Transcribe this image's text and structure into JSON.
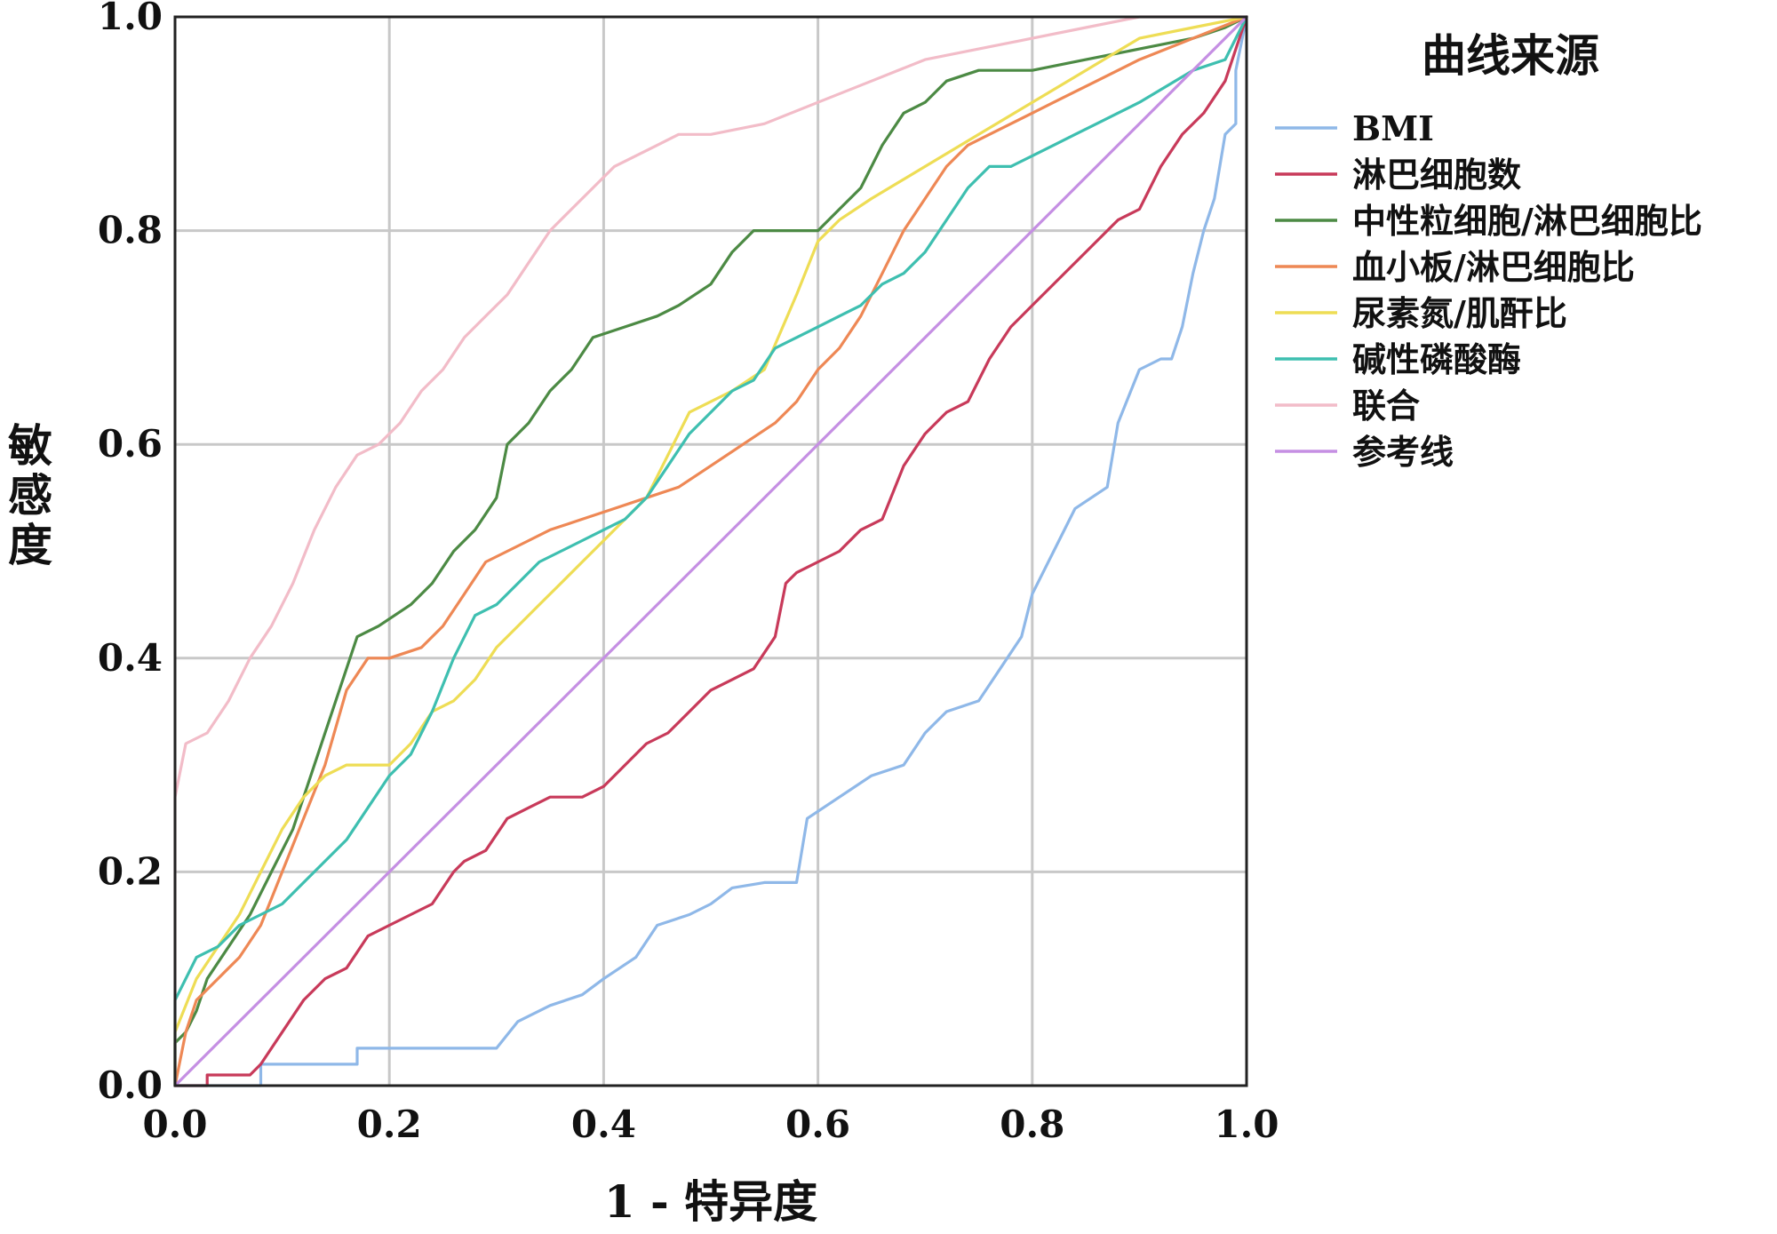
{
  "chart_data": {
    "type": "line",
    "title": "",
    "xlabel": "1 - 特异度",
    "ylabel": "敏感度",
    "xlim": [
      0,
      1
    ],
    "ylim": [
      0,
      1
    ],
    "x_ticks": [
      "0.0",
      "0.2",
      "0.4",
      "0.6",
      "0.8",
      "1.0"
    ],
    "y_ticks": [
      "0.0",
      "0.2",
      "0.4",
      "0.6",
      "0.8",
      "1.0"
    ],
    "grid": true,
    "legend_title": "曲线来源",
    "legend_position": "right",
    "series": [
      {
        "name": "BMI",
        "color": "#8fb8e8",
        "points": [
          [
            0,
            0
          ],
          [
            0.08,
            0
          ],
          [
            0.08,
            0.02
          ],
          [
            0.17,
            0.02
          ],
          [
            0.17,
            0.035
          ],
          [
            0.3,
            0.035
          ],
          [
            0.32,
            0.06
          ],
          [
            0.35,
            0.075
          ],
          [
            0.38,
            0.085
          ],
          [
            0.4,
            0.1
          ],
          [
            0.43,
            0.12
          ],
          [
            0.45,
            0.15
          ],
          [
            0.48,
            0.16
          ],
          [
            0.5,
            0.17
          ],
          [
            0.52,
            0.185
          ],
          [
            0.55,
            0.19
          ],
          [
            0.58,
            0.19
          ],
          [
            0.59,
            0.25
          ],
          [
            0.62,
            0.27
          ],
          [
            0.65,
            0.29
          ],
          [
            0.68,
            0.3
          ],
          [
            0.7,
            0.33
          ],
          [
            0.72,
            0.35
          ],
          [
            0.75,
            0.36
          ],
          [
            0.77,
            0.39
          ],
          [
            0.79,
            0.42
          ],
          [
            0.8,
            0.46
          ],
          [
            0.82,
            0.5
          ],
          [
            0.84,
            0.54
          ],
          [
            0.87,
            0.56
          ],
          [
            0.88,
            0.62
          ],
          [
            0.9,
            0.67
          ],
          [
            0.92,
            0.68
          ],
          [
            0.93,
            0.68
          ],
          [
            0.94,
            0.71
          ],
          [
            0.95,
            0.76
          ],
          [
            0.96,
            0.8
          ],
          [
            0.97,
            0.83
          ],
          [
            0.98,
            0.89
          ],
          [
            0.99,
            0.9
          ],
          [
            0.99,
            0.95
          ],
          [
            1,
            1
          ]
        ]
      },
      {
        "name": "淋巴细胞数",
        "color": "#c83a5a",
        "points": [
          [
            0,
            0
          ],
          [
            0.03,
            0
          ],
          [
            0.03,
            0.01
          ],
          [
            0.07,
            0.01
          ],
          [
            0.08,
            0.02
          ],
          [
            0.1,
            0.05
          ],
          [
            0.12,
            0.08
          ],
          [
            0.14,
            0.1
          ],
          [
            0.16,
            0.11
          ],
          [
            0.18,
            0.14
          ],
          [
            0.2,
            0.15
          ],
          [
            0.22,
            0.16
          ],
          [
            0.24,
            0.17
          ],
          [
            0.26,
            0.2
          ],
          [
            0.27,
            0.21
          ],
          [
            0.29,
            0.22
          ],
          [
            0.31,
            0.25
          ],
          [
            0.33,
            0.26
          ],
          [
            0.35,
            0.27
          ],
          [
            0.38,
            0.27
          ],
          [
            0.4,
            0.28
          ],
          [
            0.42,
            0.3
          ],
          [
            0.44,
            0.32
          ],
          [
            0.46,
            0.33
          ],
          [
            0.48,
            0.35
          ],
          [
            0.5,
            0.37
          ],
          [
            0.52,
            0.38
          ],
          [
            0.54,
            0.39
          ],
          [
            0.56,
            0.42
          ],
          [
            0.57,
            0.47
          ],
          [
            0.58,
            0.48
          ],
          [
            0.6,
            0.49
          ],
          [
            0.62,
            0.5
          ],
          [
            0.64,
            0.52
          ],
          [
            0.66,
            0.53
          ],
          [
            0.68,
            0.58
          ],
          [
            0.7,
            0.61
          ],
          [
            0.72,
            0.63
          ],
          [
            0.74,
            0.64
          ],
          [
            0.76,
            0.68
          ],
          [
            0.78,
            0.71
          ],
          [
            0.8,
            0.73
          ],
          [
            0.82,
            0.75
          ],
          [
            0.84,
            0.77
          ],
          [
            0.86,
            0.79
          ],
          [
            0.88,
            0.81
          ],
          [
            0.9,
            0.82
          ],
          [
            0.92,
            0.86
          ],
          [
            0.94,
            0.89
          ],
          [
            0.96,
            0.91
          ],
          [
            0.98,
            0.94
          ],
          [
            1,
            1
          ]
        ]
      },
      {
        "name": "中性粒细胞/淋巴细胞比",
        "color": "#4c8a44",
        "points": [
          [
            0,
            0
          ],
          [
            0,
            0.04
          ],
          [
            0.01,
            0.05
          ],
          [
            0.02,
            0.07
          ],
          [
            0.03,
            0.1
          ],
          [
            0.05,
            0.13
          ],
          [
            0.07,
            0.16
          ],
          [
            0.09,
            0.2
          ],
          [
            0.11,
            0.24
          ],
          [
            0.13,
            0.3
          ],
          [
            0.15,
            0.36
          ],
          [
            0.17,
            0.42
          ],
          [
            0.19,
            0.43
          ],
          [
            0.22,
            0.45
          ],
          [
            0.24,
            0.47
          ],
          [
            0.26,
            0.5
          ],
          [
            0.28,
            0.52
          ],
          [
            0.3,
            0.55
          ],
          [
            0.31,
            0.6
          ],
          [
            0.33,
            0.62
          ],
          [
            0.35,
            0.65
          ],
          [
            0.37,
            0.67
          ],
          [
            0.39,
            0.7
          ],
          [
            0.42,
            0.71
          ],
          [
            0.45,
            0.72
          ],
          [
            0.47,
            0.73
          ],
          [
            0.5,
            0.75
          ],
          [
            0.52,
            0.78
          ],
          [
            0.54,
            0.8
          ],
          [
            0.56,
            0.8
          ],
          [
            0.58,
            0.8
          ],
          [
            0.6,
            0.8
          ],
          [
            0.62,
            0.82
          ],
          [
            0.64,
            0.84
          ],
          [
            0.66,
            0.88
          ],
          [
            0.68,
            0.91
          ],
          [
            0.7,
            0.92
          ],
          [
            0.72,
            0.94
          ],
          [
            0.75,
            0.95
          ],
          [
            0.8,
            0.95
          ],
          [
            0.85,
            0.96
          ],
          [
            0.9,
            0.97
          ],
          [
            0.95,
            0.98
          ],
          [
            0.98,
            0.99
          ],
          [
            1,
            1
          ]
        ]
      },
      {
        "name": "血小板/淋巴细胞比",
        "color": "#ee8855",
        "points": [
          [
            0,
            0
          ],
          [
            0.01,
            0.05
          ],
          [
            0.02,
            0.08
          ],
          [
            0.04,
            0.1
          ],
          [
            0.06,
            0.12
          ],
          [
            0.08,
            0.15
          ],
          [
            0.1,
            0.2
          ],
          [
            0.12,
            0.25
          ],
          [
            0.14,
            0.3
          ],
          [
            0.16,
            0.37
          ],
          [
            0.18,
            0.4
          ],
          [
            0.2,
            0.4
          ],
          [
            0.23,
            0.41
          ],
          [
            0.25,
            0.43
          ],
          [
            0.27,
            0.46
          ],
          [
            0.29,
            0.49
          ],
          [
            0.31,
            0.5
          ],
          [
            0.33,
            0.51
          ],
          [
            0.35,
            0.52
          ],
          [
            0.38,
            0.53
          ],
          [
            0.41,
            0.54
          ],
          [
            0.44,
            0.55
          ],
          [
            0.47,
            0.56
          ],
          [
            0.5,
            0.58
          ],
          [
            0.53,
            0.6
          ],
          [
            0.56,
            0.62
          ],
          [
            0.58,
            0.64
          ],
          [
            0.6,
            0.67
          ],
          [
            0.62,
            0.69
          ],
          [
            0.64,
            0.72
          ],
          [
            0.66,
            0.76
          ],
          [
            0.68,
            0.8
          ],
          [
            0.7,
            0.83
          ],
          [
            0.72,
            0.86
          ],
          [
            0.74,
            0.88
          ],
          [
            0.76,
            0.89
          ],
          [
            0.78,
            0.9
          ],
          [
            0.8,
            0.91
          ],
          [
            0.82,
            0.92
          ],
          [
            0.84,
            0.93
          ],
          [
            0.86,
            0.94
          ],
          [
            0.9,
            0.96
          ],
          [
            0.95,
            0.98
          ],
          [
            1,
            1
          ]
        ]
      },
      {
        "name": "尿素氮/肌酐比",
        "color": "#eedd55",
        "points": [
          [
            0,
            0
          ],
          [
            0,
            0.05
          ],
          [
            0.02,
            0.1
          ],
          [
            0.04,
            0.13
          ],
          [
            0.06,
            0.16
          ],
          [
            0.08,
            0.2
          ],
          [
            0.1,
            0.24
          ],
          [
            0.12,
            0.27
          ],
          [
            0.14,
            0.29
          ],
          [
            0.16,
            0.3
          ],
          [
            0.18,
            0.3
          ],
          [
            0.2,
            0.3
          ],
          [
            0.22,
            0.32
          ],
          [
            0.24,
            0.35
          ],
          [
            0.26,
            0.36
          ],
          [
            0.28,
            0.38
          ],
          [
            0.3,
            0.41
          ],
          [
            0.32,
            0.43
          ],
          [
            0.34,
            0.45
          ],
          [
            0.36,
            0.47
          ],
          [
            0.38,
            0.49
          ],
          [
            0.4,
            0.51
          ],
          [
            0.42,
            0.53
          ],
          [
            0.44,
            0.55
          ],
          [
            0.46,
            0.59
          ],
          [
            0.48,
            0.63
          ],
          [
            0.5,
            0.64
          ],
          [
            0.52,
            0.65
          ],
          [
            0.55,
            0.67
          ],
          [
            0.58,
            0.74
          ],
          [
            0.6,
            0.79
          ],
          [
            0.62,
            0.81
          ],
          [
            0.65,
            0.83
          ],
          [
            0.7,
            0.86
          ],
          [
            0.75,
            0.89
          ],
          [
            0.8,
            0.92
          ],
          [
            0.85,
            0.95
          ],
          [
            0.9,
            0.98
          ],
          [
            0.95,
            0.99
          ],
          [
            1,
            1
          ]
        ]
      },
      {
        "name": "碱性磷酸酶",
        "color": "#3ebfb0",
        "points": [
          [
            0,
            0
          ],
          [
            0,
            0.08
          ],
          [
            0.02,
            0.12
          ],
          [
            0.04,
            0.13
          ],
          [
            0.06,
            0.15
          ],
          [
            0.08,
            0.16
          ],
          [
            0.1,
            0.17
          ],
          [
            0.12,
            0.19
          ],
          [
            0.14,
            0.21
          ],
          [
            0.16,
            0.23
          ],
          [
            0.18,
            0.26
          ],
          [
            0.2,
            0.29
          ],
          [
            0.22,
            0.31
          ],
          [
            0.24,
            0.35
          ],
          [
            0.26,
            0.4
          ],
          [
            0.28,
            0.44
          ],
          [
            0.3,
            0.45
          ],
          [
            0.32,
            0.47
          ],
          [
            0.34,
            0.49
          ],
          [
            0.36,
            0.5
          ],
          [
            0.38,
            0.51
          ],
          [
            0.4,
            0.52
          ],
          [
            0.42,
            0.53
          ],
          [
            0.44,
            0.55
          ],
          [
            0.46,
            0.58
          ],
          [
            0.48,
            0.61
          ],
          [
            0.5,
            0.63
          ],
          [
            0.52,
            0.65
          ],
          [
            0.54,
            0.66
          ],
          [
            0.56,
            0.69
          ],
          [
            0.58,
            0.7
          ],
          [
            0.6,
            0.71
          ],
          [
            0.62,
            0.72
          ],
          [
            0.64,
            0.73
          ],
          [
            0.66,
            0.75
          ],
          [
            0.68,
            0.76
          ],
          [
            0.7,
            0.78
          ],
          [
            0.72,
            0.81
          ],
          [
            0.74,
            0.84
          ],
          [
            0.76,
            0.86
          ],
          [
            0.78,
            0.86
          ],
          [
            0.8,
            0.87
          ],
          [
            0.82,
            0.88
          ],
          [
            0.84,
            0.89
          ],
          [
            0.86,
            0.9
          ],
          [
            0.9,
            0.92
          ],
          [
            0.95,
            0.95
          ],
          [
            0.98,
            0.96
          ],
          [
            1,
            1
          ]
        ]
      },
      {
        "name": "联合",
        "color": "#f2bcc8",
        "points": [
          [
            0,
            0
          ],
          [
            0,
            0.27
          ],
          [
            0.01,
            0.32
          ],
          [
            0.03,
            0.33
          ],
          [
            0.05,
            0.36
          ],
          [
            0.07,
            0.4
          ],
          [
            0.09,
            0.43
          ],
          [
            0.11,
            0.47
          ],
          [
            0.13,
            0.52
          ],
          [
            0.15,
            0.56
          ],
          [
            0.17,
            0.59
          ],
          [
            0.19,
            0.6
          ],
          [
            0.21,
            0.62
          ],
          [
            0.23,
            0.65
          ],
          [
            0.25,
            0.67
          ],
          [
            0.27,
            0.7
          ],
          [
            0.29,
            0.72
          ],
          [
            0.31,
            0.74
          ],
          [
            0.33,
            0.77
          ],
          [
            0.35,
            0.8
          ],
          [
            0.37,
            0.82
          ],
          [
            0.39,
            0.84
          ],
          [
            0.41,
            0.86
          ],
          [
            0.43,
            0.87
          ],
          [
            0.45,
            0.88
          ],
          [
            0.47,
            0.89
          ],
          [
            0.5,
            0.89
          ],
          [
            0.55,
            0.9
          ],
          [
            0.6,
            0.92
          ],
          [
            0.65,
            0.94
          ],
          [
            0.7,
            0.96
          ],
          [
            0.75,
            0.97
          ],
          [
            0.8,
            0.98
          ],
          [
            0.85,
            0.99
          ],
          [
            0.9,
            1
          ],
          [
            0.95,
            1
          ],
          [
            1,
            1
          ]
        ]
      },
      {
        "name": "参考线",
        "color": "#c58fe3",
        "points": [
          [
            0,
            0
          ],
          [
            1,
            1
          ]
        ]
      }
    ]
  }
}
